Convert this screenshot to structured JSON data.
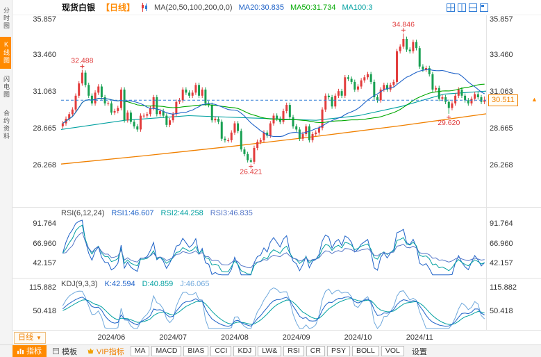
{
  "colors": {
    "up": "#e23c3c",
    "down": "#18a052",
    "ma20": "#1e62c8",
    "ma50": "#00a800",
    "ma100": "#00a0a0",
    "ma200": "#f08000",
    "accent": "#ff8a00",
    "dashed_line": "#2e7bd6",
    "annotation": "#e03b3b",
    "axis_text": "#333333",
    "rsi1": "#1e62c8",
    "rsi2": "#00a0a0",
    "rsi3": "#5577c8",
    "k": "#1e62c8",
    "d": "#00a0a0",
    "j": "#6fa8dc",
    "icon_blue": "#2e7bd6"
  },
  "sidebar": {
    "items": [
      {
        "label": "分时图",
        "active": false
      },
      {
        "label": "K线图",
        "active": true
      },
      {
        "label": "闪电图",
        "active": false
      },
      {
        "label": "合约资料",
        "active": false
      }
    ]
  },
  "header": {
    "symbol": "现货白银",
    "period_tag": "【日线】",
    "ma_label": "MA(20,50,100,200,0,0)",
    "ma20_value": "MA20:30.835",
    "ma50_value": "MA50:31.734",
    "ma100_value": "MA100:3"
  },
  "price_panel": {
    "y_ticks": [
      "35.857",
      "33.460",
      "31.063",
      "28.665",
      "26.268"
    ],
    "tick_values": [
      35.857,
      33.46,
      31.063,
      28.665,
      26.268
    ],
    "current_price": "30.511",
    "current_value": 30.511,
    "annotations": [
      {
        "text": "32.488",
        "value": 32.488,
        "index": 6,
        "pos": "above"
      },
      {
        "text": "34.846",
        "value": 34.846,
        "index": 105,
        "pos": "above"
      },
      {
        "text": "26.421",
        "value": 26.421,
        "index": 58,
        "pos": "below"
      },
      {
        "text": "29.620",
        "value": 29.62,
        "index": 119,
        "pos": "below"
      }
    ]
  },
  "chart_data": {
    "type": "candlestick",
    "title": "现货白银 日线",
    "x_tick_labels": [
      "2024/06",
      "2024/07",
      "2024/08",
      "2024/09",
      "2024/10",
      "2024/11"
    ],
    "x_tick_indices": [
      15,
      34,
      53,
      72,
      91,
      110
    ],
    "ylim": [
      23.7,
      35.95
    ],
    "candles_format": [
      "open",
      "high",
      "low",
      "close"
    ],
    "candles": [
      [
        28.8,
        29.15,
        28.65,
        29.0
      ],
      [
        29.0,
        29.45,
        28.85,
        29.3
      ],
      [
        29.3,
        29.75,
        29.15,
        29.6
      ],
      [
        29.6,
        30.05,
        29.45,
        29.9
      ],
      [
        29.9,
        30.95,
        29.75,
        30.8
      ],
      [
        30.8,
        31.75,
        30.65,
        31.6
      ],
      [
        31.6,
        32.488,
        31.45,
        32.3
      ],
      [
        32.3,
        32.45,
        31.35,
        31.5
      ],
      [
        31.5,
        31.65,
        30.65,
        30.8
      ],
      [
        30.8,
        30.95,
        30.15,
        30.3
      ],
      [
        30.3,
        31.15,
        30.15,
        31.0
      ],
      [
        31.0,
        31.55,
        30.85,
        31.4
      ],
      [
        31.4,
        31.55,
        30.55,
        30.7
      ],
      [
        30.7,
        30.85,
        30.15,
        30.3
      ],
      [
        30.3,
        30.45,
        30.15,
        30.3
      ],
      [
        30.3,
        30.45,
        29.55,
        29.7
      ],
      [
        29.7,
        29.95,
        29.55,
        29.8
      ],
      [
        29.8,
        30.15,
        29.65,
        30.0
      ],
      [
        30.0,
        31.35,
        29.85,
        31.2
      ],
      [
        31.2,
        31.35,
        29.05,
        29.2
      ],
      [
        29.2,
        29.85,
        29.05,
        29.7
      ],
      [
        29.7,
        29.85,
        28.95,
        29.1
      ],
      [
        29.1,
        29.25,
        28.65,
        28.8
      ],
      [
        28.8,
        28.95,
        28.45,
        28.6
      ],
      [
        28.6,
        29.65,
        28.45,
        29.5
      ],
      [
        29.5,
        29.65,
        29.35,
        29.5
      ],
      [
        29.5,
        29.75,
        29.35,
        29.6
      ],
      [
        29.6,
        30.15,
        29.45,
        30.0
      ],
      [
        30.0,
        30.85,
        29.85,
        30.7
      ],
      [
        30.7,
        30.85,
        29.45,
        29.6
      ],
      [
        29.6,
        29.95,
        29.45,
        29.8
      ],
      [
        29.8,
        29.95,
        29.35,
        29.5
      ],
      [
        29.5,
        29.65,
        28.75,
        28.9
      ],
      [
        28.9,
        29.35,
        28.75,
        29.2
      ],
      [
        29.2,
        29.75,
        29.05,
        29.6
      ],
      [
        29.6,
        30.55,
        29.45,
        30.4
      ],
      [
        30.4,
        30.65,
        30.25,
        30.5
      ],
      [
        30.5,
        31.35,
        30.35,
        31.2
      ],
      [
        31.2,
        31.35,
        30.85,
        31.0
      ],
      [
        31.0,
        31.15,
        30.65,
        30.8
      ],
      [
        30.8,
        31.15,
        30.65,
        31.0
      ],
      [
        31.0,
        31.65,
        30.85,
        31.5
      ],
      [
        31.5,
        31.65,
        30.65,
        30.8
      ],
      [
        30.8,
        31.35,
        30.65,
        31.2
      ],
      [
        31.2,
        31.35,
        30.15,
        30.3
      ],
      [
        30.3,
        30.45,
        30.05,
        30.2
      ],
      [
        30.2,
        30.35,
        29.05,
        29.2
      ],
      [
        29.2,
        29.45,
        29.05,
        29.3
      ],
      [
        29.3,
        29.45,
        28.95,
        29.1
      ],
      [
        29.1,
        29.25,
        27.85,
        28.0
      ],
      [
        28.0,
        28.15,
        27.75,
        27.9
      ],
      [
        27.9,
        28.05,
        27.75,
        27.9
      ],
      [
        27.9,
        28.55,
        27.75,
        28.4
      ],
      [
        28.4,
        29.15,
        28.25,
        29.0
      ],
      [
        29.0,
        29.15,
        28.35,
        28.5
      ],
      [
        28.5,
        28.65,
        27.15,
        27.3
      ],
      [
        27.3,
        27.45,
        26.85,
        27.0
      ],
      [
        27.0,
        27.15,
        26.45,
        26.6
      ],
      [
        26.6,
        26.75,
        26.421,
        26.5
      ],
      [
        26.5,
        27.55,
        26.35,
        27.4
      ],
      [
        27.4,
        27.95,
        27.25,
        27.8
      ],
      [
        27.8,
        28.05,
        27.65,
        27.9
      ],
      [
        27.9,
        28.55,
        27.75,
        28.4
      ],
      [
        28.4,
        28.55,
        28.05,
        28.2
      ],
      [
        28.2,
        29.15,
        28.05,
        29.0
      ],
      [
        29.0,
        29.65,
        28.85,
        29.5
      ],
      [
        29.5,
        29.65,
        29.15,
        29.3
      ],
      [
        29.3,
        29.45,
        28.95,
        29.1
      ],
      [
        29.1,
        29.95,
        28.95,
        29.8
      ],
      [
        29.8,
        30.35,
        29.65,
        30.2
      ],
      [
        30.2,
        30.35,
        29.25,
        29.4
      ],
      [
        29.4,
        29.55,
        28.65,
        28.8
      ],
      [
        28.8,
        28.95,
        28.45,
        28.6
      ],
      [
        28.6,
        28.75,
        27.85,
        28.0
      ],
      [
        28.0,
        28.45,
        27.85,
        28.3
      ],
      [
        28.3,
        28.95,
        28.15,
        28.8
      ],
      [
        28.8,
        28.95,
        27.75,
        27.9
      ],
      [
        27.9,
        28.45,
        27.75,
        28.3
      ],
      [
        28.3,
        28.55,
        28.15,
        28.4
      ],
      [
        28.4,
        28.85,
        28.25,
        28.7
      ],
      [
        28.7,
        30.05,
        28.55,
        29.9
      ],
      [
        29.9,
        30.95,
        29.75,
        30.8
      ],
      [
        30.8,
        30.95,
        30.55,
        30.7
      ],
      [
        30.7,
        30.85,
        29.95,
        30.1
      ],
      [
        30.1,
        30.95,
        29.95,
        30.8
      ],
      [
        30.8,
        31.25,
        30.65,
        31.1
      ],
      [
        31.1,
        31.25,
        30.65,
        30.8
      ],
      [
        30.8,
        32.15,
        30.65,
        32.0
      ],
      [
        32.0,
        32.15,
        31.75,
        31.9
      ],
      [
        31.9,
        32.05,
        31.55,
        31.7
      ],
      [
        31.7,
        31.85,
        31.05,
        31.2
      ],
      [
        31.2,
        31.55,
        31.05,
        31.4
      ],
      [
        31.4,
        31.95,
        31.25,
        31.8
      ],
      [
        31.8,
        32.15,
        31.65,
        32.0
      ],
      [
        32.0,
        32.35,
        31.85,
        32.2
      ],
      [
        32.2,
        32.35,
        31.55,
        31.7
      ],
      [
        31.7,
        31.85,
        30.55,
        30.7
      ],
      [
        30.7,
        30.85,
        30.35,
        30.5
      ],
      [
        30.5,
        31.35,
        30.35,
        31.2
      ],
      [
        31.2,
        31.65,
        31.05,
        31.5
      ],
      [
        31.5,
        31.65,
        31.05,
        31.2
      ],
      [
        31.2,
        31.65,
        31.05,
        31.5
      ],
      [
        31.5,
        31.85,
        31.35,
        31.7
      ],
      [
        31.7,
        33.85,
        31.55,
        33.7
      ],
      [
        33.7,
        34.15,
        33.55,
        34.0
      ],
      [
        34.0,
        34.846,
        33.85,
        34.5
      ],
      [
        34.5,
        34.65,
        33.65,
        33.8
      ],
      [
        33.8,
        33.95,
        33.55,
        33.7
      ],
      [
        33.7,
        34.45,
        33.55,
        34.3
      ],
      [
        34.3,
        34.45,
        33.75,
        33.9
      ],
      [
        33.9,
        34.05,
        32.55,
        32.7
      ],
      [
        32.7,
        32.85,
        32.35,
        32.5
      ],
      [
        32.5,
        32.75,
        32.35,
        32.6
      ],
      [
        32.6,
        32.75,
        32.05,
        32.2
      ],
      [
        32.2,
        32.35,
        31.05,
        31.2
      ],
      [
        31.2,
        31.45,
        31.05,
        31.3
      ],
      [
        31.3,
        31.45,
        30.45,
        30.6
      ],
      [
        30.6,
        30.85,
        30.45,
        30.7
      ],
      [
        30.7,
        30.85,
        30.25,
        30.4
      ],
      [
        30.4,
        30.55,
        29.62,
        30.0
      ],
      [
        30.0,
        30.45,
        29.85,
        30.3
      ],
      [
        30.3,
        30.95,
        30.15,
        30.8
      ],
      [
        30.8,
        31.35,
        30.65,
        31.2
      ],
      [
        31.2,
        31.35,
        30.65,
        30.8
      ],
      [
        30.8,
        30.95,
        30.35,
        30.5
      ],
      [
        30.5,
        30.65,
        30.15,
        30.3
      ],
      [
        30.3,
        30.75,
        30.15,
        30.6
      ],
      [
        30.6,
        31.05,
        30.45,
        30.9
      ],
      [
        30.9,
        31.05,
        30.55,
        30.7
      ],
      [
        30.7,
        30.85,
        30.25,
        30.4
      ],
      [
        30.4,
        30.75,
        30.25,
        30.511
      ]
    ],
    "ma_lines": {
      "ma20_period": 20,
      "ma50_period": 50,
      "ma100_keypoints": [
        [
          0,
          28.6
        ],
        [
          0.15,
          29.2
        ],
        [
          0.3,
          29.5
        ],
        [
          0.45,
          29.35
        ],
        [
          0.6,
          29.2
        ],
        [
          0.7,
          29.5
        ],
        [
          0.8,
          30.1
        ],
        [
          0.9,
          30.9
        ],
        [
          1,
          31.1
        ]
      ],
      "ma200_keypoints": [
        [
          0,
          26.35
        ],
        [
          0.2,
          26.9
        ],
        [
          0.4,
          27.5
        ],
        [
          0.6,
          28.15
        ],
        [
          0.8,
          28.85
        ],
        [
          1,
          29.62
        ]
      ]
    }
  },
  "rsi_panel": {
    "title": "RSI(6,12,24)",
    "rsi1_value": "RSI1:46.607",
    "rsi2_value": "RSI2:44.258",
    "rsi3_value": "RSI3:46.835",
    "periods": [
      6,
      12,
      24
    ],
    "y_ticks": [
      "91.764",
      "66.960",
      "42.157"
    ],
    "tick_values": [
      91.764,
      66.96,
      42.157
    ],
    "domain": [
      27,
      110
    ]
  },
  "kdj_panel": {
    "title": "KDJ(9,3,3)",
    "k_value": "K:42.594",
    "d_value": "D:40.859",
    "j_value": "J:46.065",
    "params": [
      9,
      3,
      3
    ],
    "y_ticks": [
      "115.882",
      "50.418"
    ],
    "tick_values": [
      115.882,
      50.418
    ],
    "domain": [
      0,
      138
    ]
  },
  "footer": {
    "period_selector": "日线",
    "items": [
      {
        "label": "指标"
      },
      {
        "label": "模板"
      },
      {
        "label": "VIP指标"
      },
      {
        "label": "MA"
      },
      {
        "label": "MACD"
      },
      {
        "label": "BIAS"
      },
      {
        "label": "CCI"
      },
      {
        "label": "KDJ"
      },
      {
        "label": "LW&"
      },
      {
        "label": "RSI"
      },
      {
        "label": "CR"
      },
      {
        "label": "PSY"
      },
      {
        "label": "BOLL"
      },
      {
        "label": "VOL"
      },
      {
        "label": "设置"
      }
    ]
  }
}
